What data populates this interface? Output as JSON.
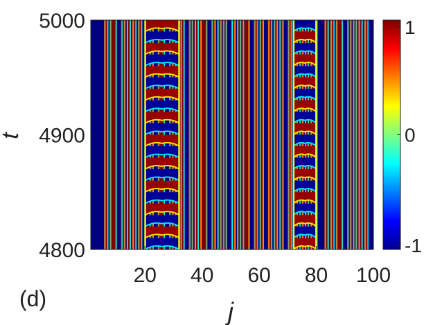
{
  "figure": {
    "panel_label": "(d)"
  },
  "chart_data": {
    "type": "heatmap",
    "title": "",
    "xlabel": "j",
    "ylabel": "t",
    "xlim": [
      1,
      100
    ],
    "ylim": [
      4800,
      5000
    ],
    "x_ticks": [
      20,
      40,
      60,
      80,
      100
    ],
    "y_ticks": [
      4800,
      4900,
      5000
    ],
    "x_tick_labels": [
      "20",
      "40",
      "60",
      "80",
      "100"
    ],
    "y_tick_labels": [
      "4800",
      "4900",
      "5000"
    ],
    "colorbar": {
      "range": [
        -1,
        1
      ],
      "ticks": [
        1,
        0,
        -1
      ],
      "tick_labels": [
        "1",
        "0",
        "-1"
      ],
      "colormap": "jet"
    },
    "stripe_pattern_first_half": [
      -1,
      -1,
      -1,
      1,
      -1,
      1,
      -1,
      1,
      1,
      -1,
      -1,
      1,
      -1,
      1,
      -1,
      1,
      -1,
      1,
      -1,
      -1
    ],
    "stripe_pattern_second_half": [
      -1,
      1,
      -1,
      -1,
      1,
      1,
      -1,
      -1,
      1,
      -1,
      1,
      -1,
      1,
      -1,
      -1,
      1,
      -1,
      1,
      -1,
      1,
      1,
      -1,
      -1,
      1,
      -1,
      1,
      -1,
      1,
      -1,
      -1,
      1,
      -1,
      1,
      -1,
      1,
      1,
      -1,
      -1,
      1,
      -1,
      1,
      -1
    ],
    "stripe_pattern_third_half": [
      -1,
      1,
      -1,
      1,
      -1,
      1,
      -1,
      -1,
      1,
      -1,
      1,
      -1,
      1,
      -1,
      1,
      -1,
      1,
      1
    ],
    "breathers": [
      {
        "j_range": [
          20,
          32
        ],
        "start_phase": 1,
        "period": 20
      },
      {
        "j_range": [
          72,
          80
        ],
        "start_phase": -1,
        "period": 20
      }
    ]
  }
}
